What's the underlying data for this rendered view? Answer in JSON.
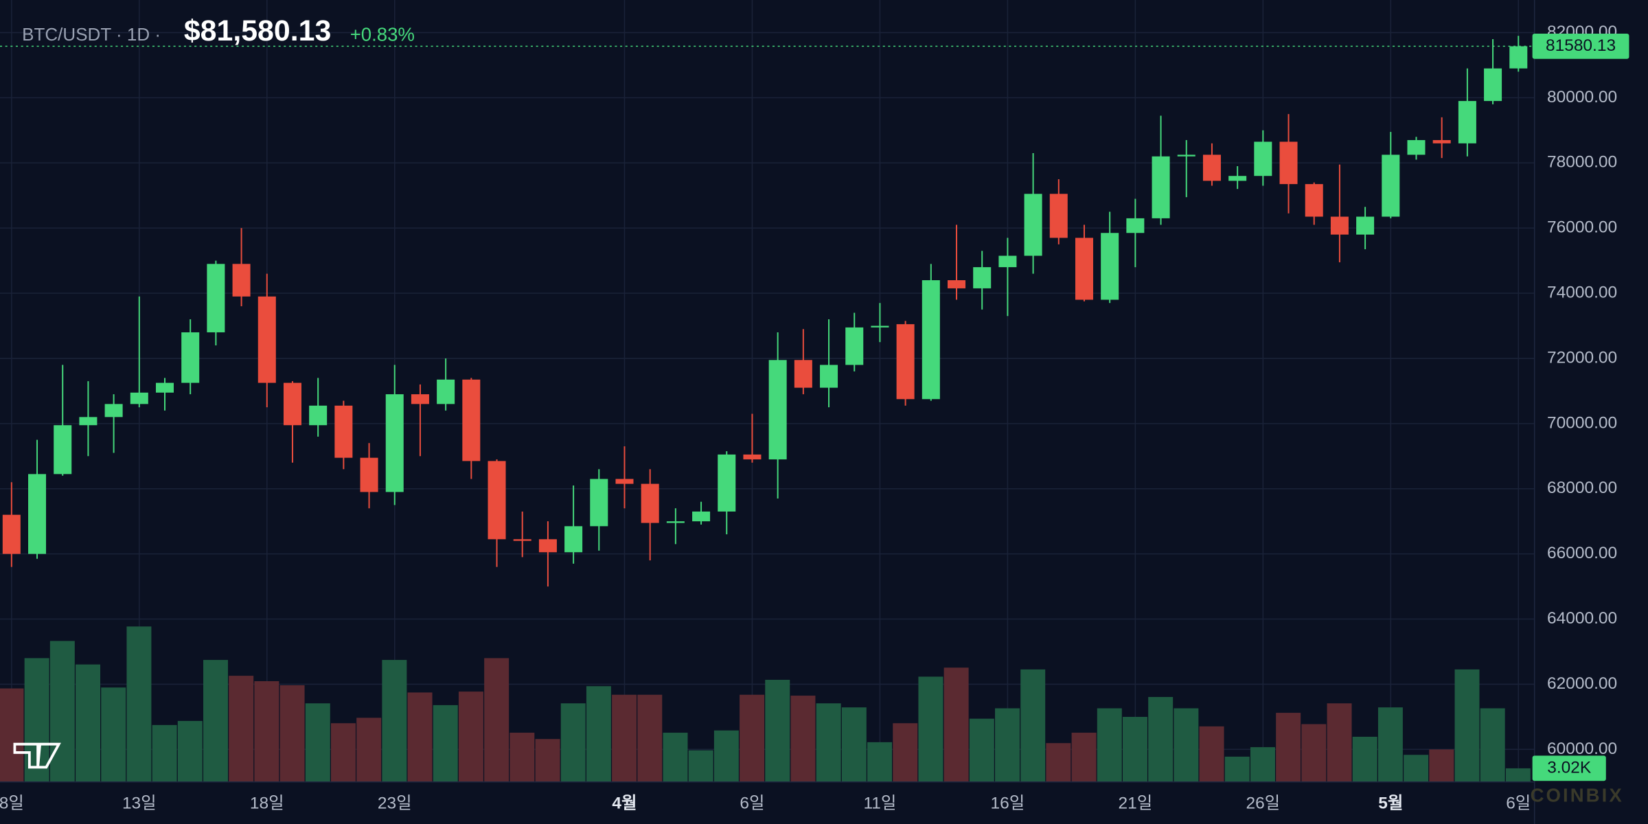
{
  "header": {
    "symbol": "BTC/USDT · 1D ·",
    "price": "$81,580.13",
    "change": "+0.83%"
  },
  "chart_data": {
    "type": "candlestick",
    "categories": [
      "8일",
      null,
      null,
      null,
      null,
      "13일",
      null,
      null,
      null,
      null,
      "18일",
      null,
      null,
      null,
      null,
      "23일",
      null,
      null,
      null,
      null,
      null,
      null,
      null,
      null,
      "4월",
      null,
      null,
      null,
      null,
      "6일",
      null,
      null,
      null,
      null,
      "11일",
      null,
      null,
      null,
      null,
      "16일",
      null,
      null,
      null,
      null,
      "21일",
      null,
      null,
      null,
      null,
      "26일",
      null,
      null,
      null,
      null,
      "5월",
      null,
      null,
      null,
      null,
      "6일"
    ],
    "open": [
      67200,
      66000,
      68450,
      69950,
      70200,
      70600,
      70950,
      71250,
      72800,
      74900,
      73900,
      71250,
      69950,
      70550,
      68950,
      67900,
      70900,
      70600,
      71350,
      68850,
      66450,
      66450,
      66050,
      66850,
      68300,
      68150,
      66950,
      67000,
      67300,
      69050,
      68900,
      71950,
      71100,
      71800,
      72950,
      73050,
      70750,
      74400,
      74150,
      74800,
      75150,
      77050,
      75700,
      73800,
      75850,
      76300,
      78200,
      78250,
      77450,
      77600,
      78650,
      77350,
      76350,
      75800,
      76350,
      78250,
      78700,
      78600,
      79900,
      80900
    ],
    "high": [
      68200,
      69500,
      71800,
      71300,
      70900,
      73900,
      71400,
      73200,
      75000,
      76000,
      74600,
      71300,
      71400,
      70700,
      69400,
      71800,
      71200,
      72000,
      71400,
      68900,
      67300,
      67000,
      68100,
      68600,
      69300,
      68600,
      67400,
      67600,
      69150,
      70300,
      72800,
      72900,
      73200,
      73400,
      73700,
      73150,
      74900,
      76100,
      75300,
      75700,
      78300,
      77500,
      76100,
      76500,
      76900,
      79450,
      78700,
      78600,
      77900,
      79000,
      79500,
      77400,
      77950,
      76650,
      78950,
      78800,
      79400,
      80900,
      81800,
      81900
    ],
    "low": [
      65600,
      65850,
      68400,
      69000,
      69100,
      70500,
      70400,
      70900,
      72400,
      73600,
      70500,
      68800,
      69600,
      68600,
      67400,
      67500,
      69000,
      70400,
      68300,
      65600,
      65900,
      65000,
      65700,
      66100,
      67400,
      65800,
      66300,
      66900,
      66600,
      68800,
      67700,
      70900,
      70500,
      71600,
      72500,
      70550,
      70700,
      73800,
      73500,
      73300,
      74600,
      75500,
      73750,
      73700,
      74800,
      76100,
      76950,
      77300,
      77200,
      77300,
      76450,
      76100,
      74950,
      75350,
      76300,
      78100,
      78150,
      78200,
      79800,
      80800
    ],
    "close": [
      66000,
      68450,
      69950,
      70200,
      70600,
      70950,
      71250,
      72800,
      74900,
      73900,
      71250,
      69950,
      70550,
      68950,
      67900,
      70900,
      70600,
      71350,
      68850,
      66450,
      66400,
      66050,
      66850,
      68300,
      68150,
      66950,
      67000,
      67300,
      69050,
      68900,
      71950,
      71100,
      71800,
      72950,
      73000,
      70750,
      74400,
      74150,
      74800,
      75150,
      77050,
      75700,
      73800,
      75850,
      76300,
      78200,
      78250,
      77450,
      77600,
      78650,
      77350,
      76350,
      75800,
      76350,
      78250,
      78700,
      78600,
      79900,
      80900,
      81580.13
    ],
    "volume": [
      20.7,
      27.4,
      31.2,
      26.0,
      20.9,
      34.4,
      12.6,
      13.5,
      27.0,
      23.5,
      22.3,
      21.4,
      17.4,
      13.0,
      14.2,
      27.0,
      19.8,
      17.0,
      20.0,
      27.4,
      10.9,
      9.5,
      17.4,
      21.2,
      19.3,
      19.3,
      10.9,
      7.0,
      11.4,
      19.3,
      22.6,
      19.1,
      17.4,
      16.5,
      8.8,
      13.0,
      23.3,
      25.3,
      14.0,
      16.3,
      24.9,
      8.6,
      10.9,
      16.3,
      14.4,
      18.8,
      16.3,
      12.3,
      5.6,
      7.7,
      15.3,
      12.8,
      17.4,
      10.0,
      16.5,
      6.0,
      7.2,
      24.9,
      16.3,
      3.02
    ],
    "volume_label": "3.02K",
    "ylim": [
      60000,
      82000
    ],
    "yticks": [
      {
        "value": 60000,
        "label": "60000.00"
      },
      {
        "value": 62000,
        "label": "62000.00"
      },
      {
        "value": 64000,
        "label": "64000.00"
      },
      {
        "value": 66000,
        "label": "66000.00"
      },
      {
        "value": 68000,
        "label": "68000.00"
      },
      {
        "value": 70000,
        "label": "70000.00"
      },
      {
        "value": 72000,
        "label": "72000.00"
      },
      {
        "value": 74000,
        "label": "74000.00"
      },
      {
        "value": 76000,
        "label": "76000.00"
      },
      {
        "value": 78000,
        "label": "78000.00"
      },
      {
        "value": 80000,
        "label": "80000.00"
      },
      {
        "value": 82000,
        "label": "82000.00"
      }
    ],
    "volume_ylim": [
      0,
      40
    ],
    "up_color": "#45d97b",
    "down_color": "#ea4d3d",
    "up_volume_color": "#1f5b42",
    "down_volume_color": "#5b2a31",
    "grid": true
  },
  "watermark": "COINBIX"
}
